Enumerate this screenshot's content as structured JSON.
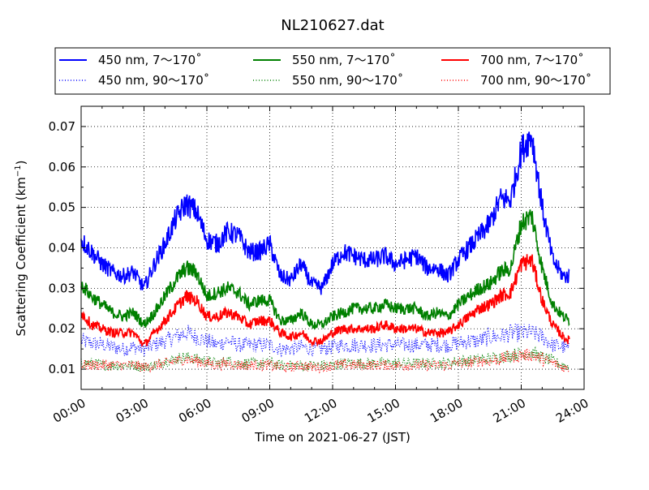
{
  "chart_data": {
    "type": "line",
    "title": "NL210627.dat",
    "xlabel": "Time on 2021-06-27 (JST)",
    "ylabel": "Scattering Coefficient (km",
    "ylabel_sup": "−1",
    "ylabel_end": ")",
    "xlim": [
      "00:00",
      "24:00"
    ],
    "x_ticks": [
      "00:00",
      "03:00",
      "06:00",
      "09:00",
      "12:00",
      "15:00",
      "18:00",
      "21:00",
      "24:00"
    ],
    "ylim": [
      0.005,
      0.075
    ],
    "y_ticks": [
      0.01,
      0.02,
      0.03,
      0.04,
      0.05,
      0.06,
      0.07
    ],
    "y_tick_labels": [
      "0.01",
      "0.02",
      "0.03",
      "0.04",
      "0.05",
      "0.06",
      "0.07"
    ],
    "grid": true,
    "legend_position": "top",
    "x_hours": [
      0,
      0.5,
      1,
      1.5,
      2,
      2.5,
      3,
      3.5,
      4,
      4.5,
      5,
      5.5,
      6,
      6.5,
      7,
      7.5,
      8,
      8.5,
      9,
      9.5,
      10,
      10.5,
      11,
      11.5,
      12,
      12.5,
      13,
      13.5,
      14,
      14.5,
      15,
      15.5,
      16,
      16.5,
      17,
      17.5,
      18,
      18.5,
      19,
      19.5,
      20,
      20.5,
      21,
      21.5,
      22,
      22.5,
      23,
      23.3
    ],
    "series": [
      {
        "name": "450 nm, 7～170˚",
        "color": "#0000ff",
        "style": "solid",
        "values": [
          0.042,
          0.039,
          0.036,
          0.034,
          0.033,
          0.034,
          0.03,
          0.036,
          0.041,
          0.047,
          0.051,
          0.049,
          0.042,
          0.041,
          0.044,
          0.043,
          0.039,
          0.039,
          0.041,
          0.033,
          0.032,
          0.036,
          0.031,
          0.03,
          0.036,
          0.039,
          0.038,
          0.037,
          0.037,
          0.038,
          0.036,
          0.037,
          0.038,
          0.035,
          0.035,
          0.033,
          0.037,
          0.04,
          0.043,
          0.046,
          0.052,
          0.052,
          0.064,
          0.068,
          0.05,
          0.037,
          0.033,
          0.033
        ]
      },
      {
        "name": "450 nm, 90～170˚",
        "color": "#0000ff",
        "style": "dotted",
        "values": [
          0.017,
          0.0165,
          0.016,
          0.0155,
          0.015,
          0.0155,
          0.015,
          0.016,
          0.017,
          0.018,
          0.019,
          0.018,
          0.017,
          0.016,
          0.017,
          0.016,
          0.016,
          0.016,
          0.016,
          0.015,
          0.015,
          0.0155,
          0.015,
          0.015,
          0.0155,
          0.016,
          0.016,
          0.016,
          0.016,
          0.016,
          0.016,
          0.016,
          0.016,
          0.016,
          0.016,
          0.016,
          0.0165,
          0.017,
          0.017,
          0.018,
          0.018,
          0.019,
          0.019,
          0.019,
          0.018,
          0.016,
          0.0155,
          0.015
        ]
      },
      {
        "name": "550 nm, 7～170˚",
        "color": "#008000",
        "style": "solid",
        "values": [
          0.031,
          0.028,
          0.026,
          0.024,
          0.023,
          0.024,
          0.021,
          0.024,
          0.028,
          0.032,
          0.035,
          0.034,
          0.028,
          0.029,
          0.03,
          0.029,
          0.026,
          0.027,
          0.027,
          0.022,
          0.022,
          0.024,
          0.021,
          0.021,
          0.023,
          0.024,
          0.025,
          0.025,
          0.025,
          0.026,
          0.025,
          0.025,
          0.025,
          0.023,
          0.024,
          0.023,
          0.026,
          0.028,
          0.03,
          0.031,
          0.034,
          0.035,
          0.046,
          0.048,
          0.035,
          0.026,
          0.023,
          0.022
        ]
      },
      {
        "name": "550 nm, 90～170˚",
        "color": "#008000",
        "style": "dotted",
        "values": [
          0.0115,
          0.0115,
          0.011,
          0.011,
          0.011,
          0.011,
          0.0105,
          0.011,
          0.012,
          0.0125,
          0.013,
          0.0125,
          0.012,
          0.0115,
          0.012,
          0.0115,
          0.0115,
          0.0115,
          0.0115,
          0.011,
          0.011,
          0.011,
          0.011,
          0.011,
          0.011,
          0.0115,
          0.0115,
          0.0115,
          0.0115,
          0.0115,
          0.0115,
          0.0115,
          0.0115,
          0.0115,
          0.0115,
          0.0115,
          0.012,
          0.012,
          0.0125,
          0.0125,
          0.013,
          0.0135,
          0.014,
          0.014,
          0.013,
          0.012,
          0.011,
          0.0105
        ]
      },
      {
        "name": "700 nm, 7～170˚",
        "color": "#ff0000",
        "style": "solid",
        "values": [
          0.024,
          0.021,
          0.02,
          0.019,
          0.019,
          0.019,
          0.016,
          0.019,
          0.022,
          0.025,
          0.028,
          0.027,
          0.023,
          0.023,
          0.024,
          0.023,
          0.021,
          0.022,
          0.022,
          0.019,
          0.018,
          0.019,
          0.017,
          0.017,
          0.019,
          0.02,
          0.02,
          0.02,
          0.02,
          0.021,
          0.02,
          0.02,
          0.02,
          0.019,
          0.019,
          0.019,
          0.021,
          0.023,
          0.025,
          0.026,
          0.028,
          0.029,
          0.036,
          0.037,
          0.027,
          0.021,
          0.018,
          0.017
        ]
      },
      {
        "name": "700 nm, 90～170˚",
        "color": "#ff0000",
        "style": "dotted",
        "values": [
          0.011,
          0.011,
          0.011,
          0.011,
          0.011,
          0.011,
          0.0105,
          0.011,
          0.0115,
          0.012,
          0.0125,
          0.012,
          0.0115,
          0.011,
          0.0115,
          0.011,
          0.011,
          0.011,
          0.011,
          0.0105,
          0.0105,
          0.011,
          0.0105,
          0.0105,
          0.011,
          0.011,
          0.011,
          0.011,
          0.011,
          0.011,
          0.011,
          0.011,
          0.011,
          0.011,
          0.011,
          0.011,
          0.0115,
          0.0115,
          0.012,
          0.012,
          0.0125,
          0.013,
          0.0135,
          0.0135,
          0.0125,
          0.0115,
          0.0105,
          0.01
        ]
      }
    ]
  }
}
